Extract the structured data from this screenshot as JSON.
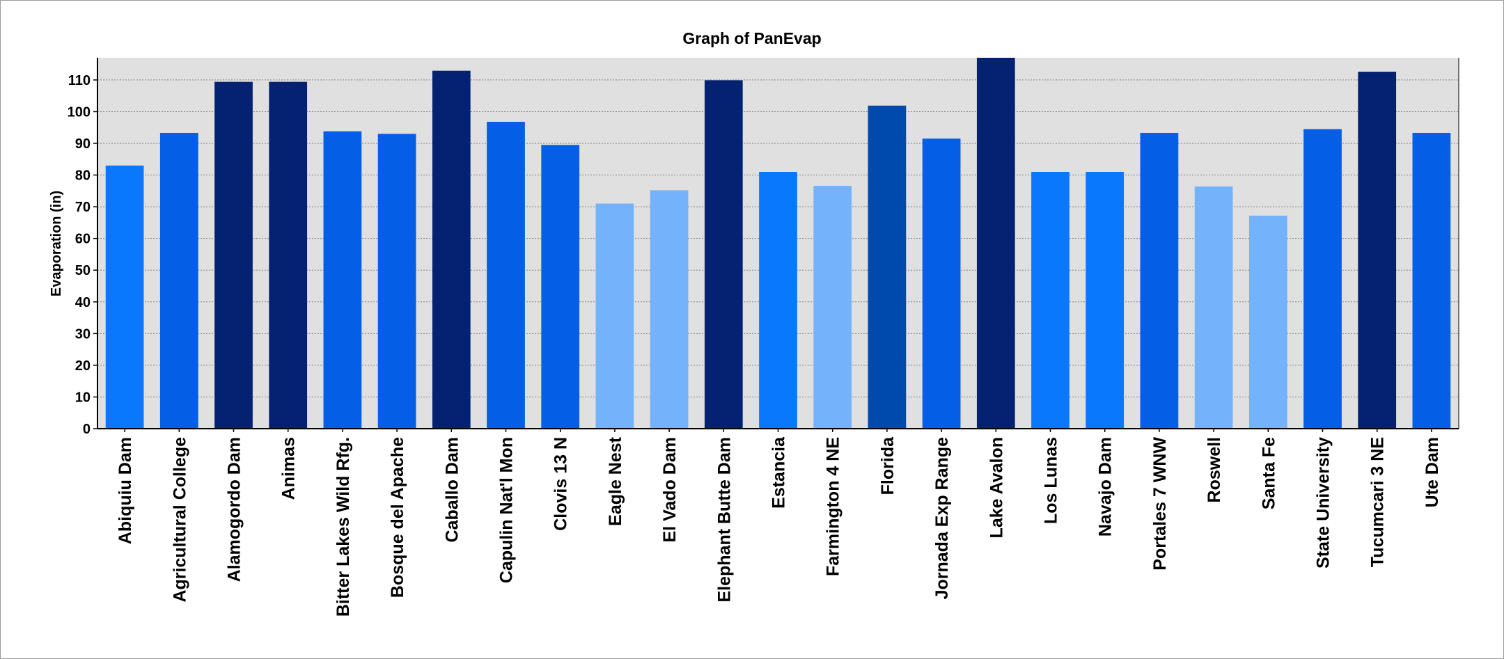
{
  "chart_data": {
    "type": "bar",
    "title": "Graph of PanEvap",
    "xlabel": "",
    "ylabel": "Evaporation (in)",
    "ylim": [
      0,
      117
    ],
    "yticks": [
      0,
      10,
      20,
      30,
      40,
      50,
      60,
      70,
      80,
      90,
      100,
      110
    ],
    "grid": true,
    "legend": "none",
    "colors": {
      "plot_background": "#e0e0e0",
      "gridline": "#808080",
      "darkest": "#042271",
      "dark": "#004aad",
      "medium": "#045fe6",
      "bright": "#0a78fc",
      "light": "#74b2fc"
    },
    "categories": [
      "Abiquiu Dam",
      "Agricultural College",
      "Alamogordo Dam",
      "Animas",
      "Bitter Lakes Wild Rfg.",
      "Bosque del Apache",
      "Caballo Dam",
      "Capulin Nat'l Mon",
      "Clovis 13 N",
      "Eagle Nest",
      "El Vado Dam",
      "Elephant Butte Dam",
      "Estancia",
      "Farmington 4 NE",
      "Florida",
      "Jornada Exp Range",
      "Lake Avalon",
      "Los Lunas",
      "Navajo Dam",
      "Portales 7 WNW",
      "Roswell",
      "Santa Fe",
      "State University",
      "Tucumcari 3 NE",
      "Ute Dam"
    ],
    "values": [
      83.0,
      93.3,
      109.4,
      109.4,
      93.8,
      93.0,
      112.9,
      96.8,
      89.5,
      71.0,
      75.2,
      109.9,
      81.0,
      76.6,
      101.9,
      91.5,
      117.0,
      81.0,
      81.0,
      93.3,
      76.4,
      67.2,
      94.5,
      112.6,
      93.3
    ],
    "bar_colors": [
      "#0a78fc",
      "#045fe6",
      "#042271",
      "#042271",
      "#045fe6",
      "#045fe6",
      "#042271",
      "#045fe6",
      "#045fe6",
      "#74b2fc",
      "#74b2fc",
      "#042271",
      "#0a78fc",
      "#74b2fc",
      "#004aad",
      "#045fe6",
      "#042271",
      "#0a78fc",
      "#0a78fc",
      "#045fe6",
      "#74b2fc",
      "#74b2fc",
      "#045fe6",
      "#042271",
      "#045fe6"
    ]
  }
}
